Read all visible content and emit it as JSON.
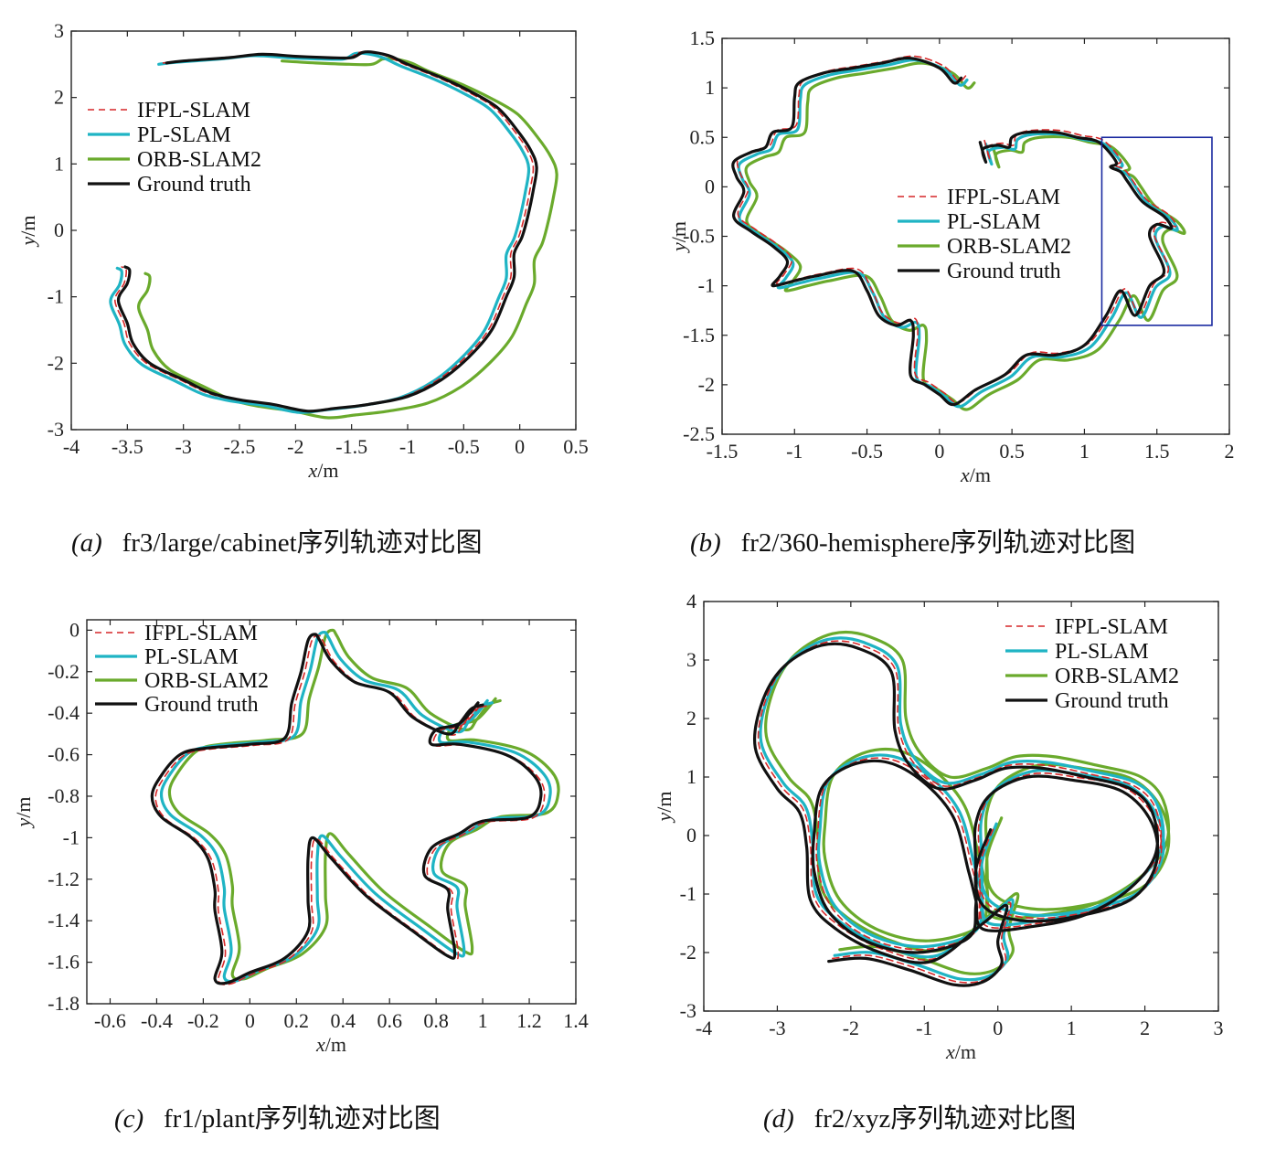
{
  "legend_entries": [
    {
      "name": "IFPL-SLAM",
      "color": "#d62728",
      "dash": true
    },
    {
      "name": "PL-SLAM",
      "color": "#1fb4c4",
      "dash": false
    },
    {
      "name": "ORB-SLAM2",
      "color": "#6aaa2c",
      "dash": false
    },
    {
      "name": "Ground truth",
      "color": "#111111",
      "dash": false
    }
  ],
  "chart_data": [
    {
      "id": "a",
      "type": "line",
      "caption_letter": "(a)",
      "caption_text": "fr3/large/cabinet序列轨迹对比图",
      "xlabel_var": "x",
      "xlabel_unit": "/m",
      "ylabel_var": "y",
      "ylabel_unit": "/m",
      "xlim": [
        -4,
        0.5
      ],
      "ylim": [
        -3,
        3
      ],
      "xticks": [
        "-4",
        "-3.5",
        "-3",
        "-2.5",
        "-2",
        "-1.5",
        "-1",
        "-0.5",
        "0",
        "0.5"
      ],
      "yticks": [
        "-3",
        "-2",
        "-1",
        "0",
        "1",
        "2",
        "3"
      ],
      "legend": "upper-left",
      "gt_points": [
        [
          -3.15,
          2.52
        ],
        [
          -3.0,
          2.55
        ],
        [
          -2.6,
          2.6
        ],
        [
          -2.3,
          2.65
        ],
        [
          -2.0,
          2.62
        ],
        [
          -1.7,
          2.6
        ],
        [
          -1.5,
          2.6
        ],
        [
          -1.4,
          2.68
        ],
        [
          -1.3,
          2.68
        ],
        [
          -1.15,
          2.62
        ],
        [
          -1.0,
          2.5
        ],
        [
          -0.7,
          2.3
        ],
        [
          -0.45,
          2.1
        ],
        [
          -0.2,
          1.85
        ],
        [
          -0.02,
          1.5
        ],
        [
          0.1,
          1.2
        ],
        [
          0.15,
          0.95
        ],
        [
          0.12,
          0.6
        ],
        [
          0.07,
          0.2
        ],
        [
          0.02,
          -0.1
        ],
        [
          -0.05,
          -0.35
        ],
        [
          -0.05,
          -0.7
        ],
        [
          -0.12,
          -1.0
        ],
        [
          -0.25,
          -1.5
        ],
        [
          -0.45,
          -1.9
        ],
        [
          -0.7,
          -2.25
        ],
        [
          -1.0,
          -2.5
        ],
        [
          -1.35,
          -2.62
        ],
        [
          -1.65,
          -2.68
        ],
        [
          -1.9,
          -2.72
        ],
        [
          -2.2,
          -2.62
        ],
        [
          -2.5,
          -2.55
        ],
        [
          -2.75,
          -2.45
        ],
        [
          -3.0,
          -2.25
        ],
        [
          -3.3,
          -2.0
        ],
        [
          -3.45,
          -1.7
        ],
        [
          -3.5,
          -1.4
        ],
        [
          -3.58,
          -1.05
        ],
        [
          -3.5,
          -0.8
        ],
        [
          -3.48,
          -0.6
        ],
        [
          -3.52,
          -0.55
        ]
      ],
      "series": [
        {
          "name": "IFPL-SLAM",
          "dx": -0.03,
          "dy": 0.0,
          "from": 0.0
        },
        {
          "name": "PL-SLAM",
          "dx": -0.07,
          "dy": -0.02,
          "from": 0.0
        },
        {
          "name": "ORB-SLAM2",
          "dx": 0.18,
          "dy": -0.1,
          "from": 0.08
        },
        {
          "name": "Ground truth",
          "dx": 0,
          "dy": 0,
          "from": 0.0
        }
      ]
    },
    {
      "id": "b",
      "type": "line",
      "caption_letter": "(b)",
      "caption_text": "fr2/360-hemisphere序列轨迹对比图",
      "xlabel_var": "x",
      "xlabel_unit": "/m",
      "ylabel_var": "y",
      "ylabel_unit": "/m",
      "xlim": [
        -1.5,
        2
      ],
      "ylim": [
        -2.5,
        1.5
      ],
      "xticks": [
        "-1.5",
        "-1",
        "-0.5",
        "0",
        "0.5",
        "1",
        "1.5",
        "2"
      ],
      "yticks": [
        "-2.5",
        "-2",
        "-1.5",
        "-1",
        "-0.5",
        "0",
        "0.5",
        "1",
        "1.5"
      ],
      "legend": "center-right",
      "inset_box": {
        "x0": 1.12,
        "x1": 1.88,
        "y0": -1.4,
        "y1": 0.5
      },
      "gt_points": [
        [
          0.15,
          1.1
        ],
        [
          0.1,
          1.05
        ],
        [
          0.0,
          1.2
        ],
        [
          -0.2,
          1.3
        ],
        [
          -0.4,
          1.25
        ],
        [
          -0.6,
          1.2
        ],
        [
          -0.8,
          1.15
        ],
        [
          -0.97,
          1.05
        ],
        [
          -1.0,
          0.9
        ],
        [
          -1.02,
          0.6
        ],
        [
          -1.15,
          0.55
        ],
        [
          -1.2,
          0.4
        ],
        [
          -1.3,
          0.35
        ],
        [
          -1.42,
          0.25
        ],
        [
          -1.4,
          0.1
        ],
        [
          -1.35,
          -0.05
        ],
        [
          -1.42,
          -0.3
        ],
        [
          -1.3,
          -0.45
        ],
        [
          -1.15,
          -0.6
        ],
        [
          -1.05,
          -0.75
        ],
        [
          -1.1,
          -0.9
        ],
        [
          -1.15,
          -1.0
        ],
        [
          -1.0,
          -0.95
        ],
        [
          -0.85,
          -0.9
        ],
        [
          -0.6,
          -0.85
        ],
        [
          -0.5,
          -1.05
        ],
        [
          -0.42,
          -1.3
        ],
        [
          -0.3,
          -1.4
        ],
        [
          -0.2,
          -1.35
        ],
        [
          -0.18,
          -1.5
        ],
        [
          -0.2,
          -1.9
        ],
        [
          -0.1,
          -2.0
        ],
        [
          0.0,
          -2.1
        ],
        [
          0.1,
          -2.2
        ],
        [
          0.25,
          -2.05
        ],
        [
          0.45,
          -1.9
        ],
        [
          0.6,
          -1.7
        ],
        [
          0.8,
          -1.7
        ],
        [
          1.0,
          -1.6
        ],
        [
          1.15,
          -1.3
        ],
        [
          1.25,
          -1.05
        ],
        [
          1.35,
          -1.3
        ],
        [
          1.45,
          -1.0
        ],
        [
          1.55,
          -0.85
        ],
        [
          1.45,
          -0.5
        ],
        [
          1.5,
          -0.38
        ],
        [
          1.6,
          -0.42
        ],
        [
          1.55,
          -0.3
        ],
        [
          1.4,
          -0.15
        ],
        [
          1.3,
          0.05
        ],
        [
          1.25,
          0.15
        ],
        [
          1.18,
          0.2
        ],
        [
          1.22,
          0.25
        ],
        [
          1.1,
          0.45
        ],
        [
          0.95,
          0.5
        ],
        [
          0.8,
          0.55
        ],
        [
          0.6,
          0.55
        ],
        [
          0.5,
          0.5
        ],
        [
          0.48,
          0.4
        ],
        [
          0.4,
          0.42
        ],
        [
          0.3,
          0.38
        ],
        [
          0.32,
          0.25
        ],
        [
          0.28,
          0.45
        ]
      ],
      "series": [
        {
          "name": "IFPL-SLAM",
          "dx": 0.03,
          "dy": 0.02,
          "from": 0.0
        },
        {
          "name": "PL-SLAM",
          "dx": 0.04,
          "dy": -0.02,
          "from": 0.0
        },
        {
          "name": "ORB-SLAM2",
          "dx": 0.09,
          "dy": -0.05,
          "from": 0.0
        },
        {
          "name": "Ground truth",
          "dx": 0,
          "dy": 0,
          "from": 0.0
        }
      ]
    },
    {
      "id": "c",
      "type": "line",
      "caption_letter": "(c)",
      "caption_text": "fr1/plant序列轨迹对比图",
      "xlabel_var": "x",
      "xlabel_unit": "/m",
      "ylabel_var": "y",
      "ylabel_unit": "/m",
      "xlim": [
        -0.7,
        1.4
      ],
      "ylim": [
        -1.8,
        0.05
      ],
      "xticks": [
        "-0.6",
        "-0.4",
        "-0.2",
        "0",
        "0.2",
        "0.4",
        "0.6",
        "0.8",
        "1",
        "1.2",
        "1.4"
      ],
      "yticks": [
        "-1.8",
        "-1.6",
        "-1.4",
        "-1.2",
        "-1",
        "-0.8",
        "-0.6",
        "-0.4",
        "-0.2",
        "0"
      ],
      "legend": "upper-left",
      "gt_points": [
        [
          1.0,
          -0.36
        ],
        [
          0.95,
          -0.38
        ],
        [
          0.9,
          -0.45
        ],
        [
          0.85,
          -0.5
        ],
        [
          0.7,
          -0.42
        ],
        [
          0.6,
          -0.3
        ],
        [
          0.45,
          -0.25
        ],
        [
          0.35,
          -0.15
        ],
        [
          0.3,
          -0.05
        ],
        [
          0.28,
          -0.02
        ],
        [
          0.25,
          -0.05
        ],
        [
          0.22,
          -0.2
        ],
        [
          0.18,
          -0.35
        ],
        [
          0.15,
          -0.52
        ],
        [
          0.0,
          -0.55
        ],
        [
          -0.2,
          -0.57
        ],
        [
          -0.3,
          -0.6
        ],
        [
          -0.38,
          -0.7
        ],
        [
          -0.42,
          -0.8
        ],
        [
          -0.38,
          -0.9
        ],
        [
          -0.25,
          -1.0
        ],
        [
          -0.18,
          -1.1
        ],
        [
          -0.15,
          -1.25
        ],
        [
          -0.15,
          -1.35
        ],
        [
          -0.12,
          -1.55
        ],
        [
          -0.15,
          -1.68
        ],
        [
          -0.1,
          -1.7
        ],
        [
          0.0,
          -1.65
        ],
        [
          0.15,
          -1.58
        ],
        [
          0.25,
          -1.45
        ],
        [
          0.25,
          -1.3
        ],
        [
          0.25,
          -1.1
        ],
        [
          0.27,
          -1.0
        ],
        [
          0.35,
          -1.1
        ],
        [
          0.5,
          -1.28
        ],
        [
          0.7,
          -1.45
        ],
        [
          0.85,
          -1.57
        ],
        [
          0.88,
          -1.55
        ],
        [
          0.85,
          -1.35
        ],
        [
          0.85,
          -1.25
        ],
        [
          0.75,
          -1.18
        ],
        [
          0.78,
          -1.05
        ],
        [
          0.9,
          -0.98
        ],
        [
          1.0,
          -0.92
        ],
        [
          1.2,
          -0.9
        ],
        [
          1.25,
          -0.8
        ],
        [
          1.22,
          -0.7
        ],
        [
          1.1,
          -0.6
        ],
        [
          0.9,
          -0.55
        ],
        [
          0.78,
          -0.55
        ],
        [
          0.8,
          -0.48
        ],
        [
          0.9,
          -0.45
        ],
        [
          0.98,
          -0.35
        ]
      ],
      "series": [
        {
          "name": "IFPL-SLAM",
          "dx": 0.015,
          "dy": -0.005,
          "from": 0.0
        },
        {
          "name": "PL-SLAM",
          "dx": 0.04,
          "dy": 0.01,
          "from": 0.0
        },
        {
          "name": "ORB-SLAM2",
          "dx": 0.075,
          "dy": 0.02,
          "from": 0.0
        },
        {
          "name": "Ground truth",
          "dx": 0,
          "dy": 0,
          "from": 0.0
        }
      ]
    },
    {
      "id": "d",
      "type": "line",
      "caption_letter": "(d)",
      "caption_text": "fr2/xyz序列轨迹对比图",
      "xlabel_var": "x",
      "xlabel_unit": "/m",
      "ylabel_var": "y",
      "ylabel_unit": "/m",
      "xlim": [
        -4,
        3
      ],
      "ylim": [
        -3,
        4
      ],
      "xticks": [
        "-4",
        "-3",
        "-2",
        "-1",
        "0",
        "1",
        "2",
        "3"
      ],
      "yticks": [
        "-3",
        "-2",
        "-1",
        "0",
        "1",
        "2",
        "3",
        "4"
      ],
      "legend": "upper-right",
      "gt_points": [
        [
          -2.3,
          -2.15
        ],
        [
          -1.8,
          -2.1
        ],
        [
          -1.2,
          -2.3
        ],
        [
          -0.6,
          -2.55
        ],
        [
          -0.2,
          -2.5
        ],
        [
          0.05,
          -2.2
        ],
        [
          0.0,
          -1.8
        ],
        [
          0.12,
          -1.2
        ],
        [
          -0.2,
          -1.5
        ],
        [
          -0.9,
          -2.15
        ],
        [
          -1.6,
          -2.0
        ],
        [
          -2.2,
          -1.6
        ],
        [
          -2.55,
          -1.1
        ],
        [
          -2.6,
          -0.2
        ],
        [
          -2.7,
          0.4
        ],
        [
          -3.0,
          0.8
        ],
        [
          -3.3,
          1.5
        ],
        [
          -3.2,
          2.3
        ],
        [
          -2.9,
          2.9
        ],
        [
          -2.4,
          3.25
        ],
        [
          -1.9,
          3.2
        ],
        [
          -1.45,
          2.8
        ],
        [
          -1.4,
          1.8
        ],
        [
          -1.2,
          1.2
        ],
        [
          -0.8,
          0.8
        ],
        [
          -0.3,
          0.95
        ],
        [
          0.1,
          1.15
        ],
        [
          0.6,
          1.15
        ],
        [
          1.2,
          1.0
        ],
        [
          1.8,
          0.8
        ],
        [
          2.1,
          0.4
        ],
        [
          2.15,
          -0.3
        ],
        [
          1.8,
          -0.9
        ],
        [
          1.2,
          -1.35
        ],
        [
          0.5,
          -1.55
        ],
        [
          -0.2,
          -1.6
        ],
        [
          -0.3,
          -1.1
        ],
        [
          -0.4,
          -0.6
        ],
        [
          -0.6,
          0.3
        ],
        [
          -1.0,
          0.9
        ],
        [
          -1.5,
          1.25
        ],
        [
          -2.0,
          1.2
        ],
        [
          -2.4,
          0.8
        ],
        [
          -2.5,
          0.0
        ],
        [
          -2.5,
          -0.6
        ],
        [
          -2.3,
          -1.3
        ],
        [
          -1.8,
          -1.8
        ],
        [
          -1.1,
          -2.0
        ],
        [
          -0.4,
          -1.75
        ],
        [
          -0.3,
          -1.2
        ],
        [
          -0.3,
          -0.5
        ],
        [
          -0.3,
          0.2
        ],
        [
          -0.1,
          0.7
        ],
        [
          0.4,
          1.0
        ],
        [
          1.0,
          0.95
        ],
        [
          1.7,
          0.75
        ],
        [
          2.1,
          0.2
        ],
        [
          2.15,
          -0.5
        ],
        [
          1.8,
          -1.1
        ],
        [
          1.0,
          -1.4
        ],
        [
          0.3,
          -1.45
        ],
        [
          -0.2,
          -1.2
        ],
        [
          -0.3,
          -0.6
        ],
        [
          -0.1,
          0.1
        ]
      ],
      "series": [
        {
          "name": "IFPL-SLAM",
          "dx": 0.05,
          "dy": 0.05,
          "from": 0.0
        },
        {
          "name": "PL-SLAM",
          "dx": 0.08,
          "dy": 0.1,
          "from": 0.0
        },
        {
          "name": "ORB-SLAM2",
          "dx": 0.15,
          "dy": 0.2,
          "from": 0.0
        },
        {
          "name": "Ground truth",
          "dx": 0,
          "dy": 0,
          "from": 0.0
        }
      ]
    }
  ]
}
